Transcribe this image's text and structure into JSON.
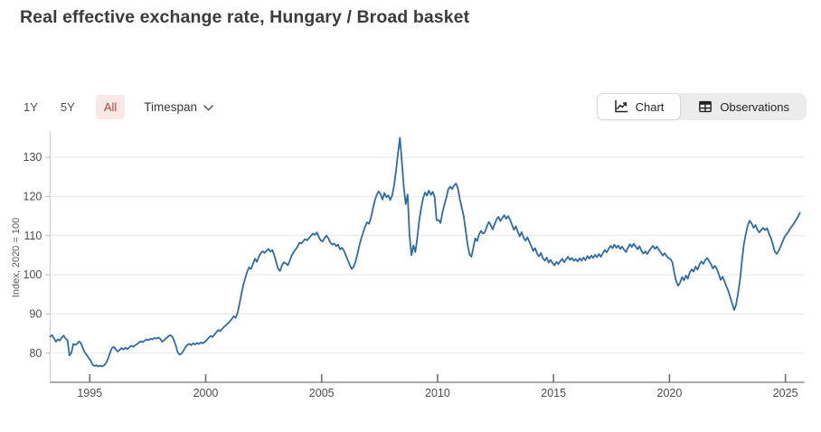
{
  "header": {
    "title": "Real effective exchange rate, Hungary / Broad basket"
  },
  "controls": {
    "range_buttons": [
      {
        "label": "1Y",
        "active": false
      },
      {
        "label": "5Y",
        "active": false
      },
      {
        "label": "All",
        "active": true
      }
    ],
    "timespan_label": "Timespan",
    "view_toggle": [
      {
        "label": "Chart",
        "icon": "line-chart-icon",
        "active": true
      },
      {
        "label": "Observations",
        "icon": "table-icon",
        "active": false
      }
    ]
  },
  "colors": {
    "line": "#2e6ca4",
    "grid": "#e7e7e7",
    "x_axis": "#8f8f8f",
    "y_axis": "#c9c9c9",
    "tick": "#6e6e6e",
    "tick_label": "#4c4c4c",
    "axis_title": "#5a5a5a",
    "active_pill_bg": "#f9e8e5",
    "active_pill_text": "#b5413d"
  },
  "chart_data": {
    "type": "line",
    "title": "Real effective exchange rate, Hungary / Broad basket",
    "series_name": "Hungary, real effective exchange rate, broad basket",
    "ylabel": "Index, 2020 = 100",
    "x_ticks": [
      1995,
      2000,
      2005,
      2010,
      2015,
      2020,
      2025
    ],
    "y_ticks": [
      80,
      90,
      100,
      110,
      120,
      130
    ],
    "xlim": [
      1993.29,
      2025.63
    ],
    "ylim": [
      75.5,
      137
    ],
    "grid": "horizontal-only",
    "legend": "none",
    "frequency": "monthly",
    "start_year": 1993,
    "start_month": 4,
    "values": [
      84.2,
      84.6,
      83.8,
      82.9,
      83.5,
      83.2,
      83.9,
      84.5,
      83.7,
      83.3,
      79.4,
      80.1,
      82.3,
      82.1,
      82.4,
      83.0,
      82.5,
      81.2,
      80.1,
      79.5,
      78.7,
      78.1,
      77.0,
      76.7,
      76.9,
      76.6,
      76.8,
      76.6,
      76.9,
      77.5,
      78.6,
      80.1,
      81.3,
      81.6,
      80.9,
      80.4,
      80.8,
      81.3,
      80.9,
      81.4,
      81.0,
      81.5,
      81.9,
      81.6,
      82.0,
      82.3,
      82.7,
      83.0,
      82.8,
      83.2,
      83.5,
      83.3,
      83.7,
      83.5,
      83.9,
      83.7,
      84.0,
      83.6,
      82.9,
      83.3,
      83.8,
      84.2,
      84.6,
      84.3,
      83.4,
      82.0,
      80.2,
      79.6,
      79.9,
      80.6,
      81.5,
      82.1,
      82.4,
      82.0,
      82.5,
      82.2,
      82.6,
      82.3,
      82.7,
      82.5,
      82.9,
      83.3,
      83.9,
      84.4,
      84.1,
      84.7,
      85.3,
      85.9,
      85.6,
      86.2,
      86.7,
      87.1,
      87.6,
      88.1,
      88.7,
      89.4,
      89.0,
      90.3,
      92.6,
      95.1,
      97.4,
      99.2,
      100.8,
      101.9,
      101.5,
      102.8,
      104.1,
      103.3,
      104.6,
      105.5,
      106.0,
      105.6,
      106.1,
      106.6,
      105.9,
      106.3,
      105.0,
      103.2,
      101.5,
      101.0,
      102.5,
      103.2,
      102.9,
      102.4,
      103.6,
      104.9,
      105.8,
      106.5,
      107.1,
      108.2,
      108.0,
      108.6,
      109.1,
      108.8,
      109.4,
      110.0,
      110.5,
      110.2,
      110.8,
      109.7,
      108.8,
      108.5,
      109.4,
      110.0,
      109.3,
      108.2,
      107.7,
      108.0,
      107.3,
      107.7,
      106.5,
      106.9,
      106.2,
      105.0,
      103.8,
      102.6,
      101.5,
      102.0,
      103.3,
      105.2,
      107.4,
      109.3,
      110.8,
      112.3,
      113.4,
      113.0,
      114.5,
      116.8,
      118.9,
      120.4,
      121.3,
      120.6,
      119.2,
      120.9,
      119.8,
      120.3,
      119.1,
      120.3,
      122.8,
      126.5,
      131.0,
      135.0,
      129.0,
      122.5,
      118.0,
      120.5,
      110.0,
      105.0,
      107.5,
      105.8,
      109.5,
      113.8,
      117.0,
      119.5,
      121.0,
      120.2,
      121.5,
      120.4,
      121.2,
      119.8,
      113.9,
      114.0,
      113.2,
      115.8,
      117.9,
      119.6,
      121.8,
      122.5,
      121.9,
      122.8,
      123.3,
      122.1,
      119.4,
      117.2,
      115.0,
      111.5,
      107.8,
      105.2,
      104.6,
      106.9,
      109.3,
      108.6,
      110.4,
      111.2,
      110.5,
      110.9,
      112.3,
      113.5,
      112.7,
      111.6,
      112.9,
      114.1,
      114.8,
      113.7,
      114.5,
      115.2,
      114.3,
      115.0,
      114.1,
      112.8,
      111.5,
      112.4,
      111.0,
      109.8,
      110.9,
      109.5,
      108.7,
      109.6,
      108.4,
      107.3,
      106.1,
      106.8,
      105.4,
      104.7,
      105.6,
      104.2,
      103.6,
      104.4,
      103.1,
      103.8,
      103.0,
      102.4,
      103.3,
      102.7,
      103.5,
      104.1,
      103.2,
      103.9,
      104.6,
      103.8,
      104.3,
      103.6,
      104.0,
      103.4,
      104.2,
      103.6,
      104.4,
      103.7,
      104.8,
      104.1,
      104.9,
      104.3,
      105.1,
      104.5,
      105.3,
      104.6,
      105.5,
      106.3,
      105.7,
      106.6,
      107.4,
      106.8,
      107.7,
      106.9,
      107.5,
      106.6,
      107.2,
      106.4,
      105.8,
      106.9,
      107.8,
      107.1,
      107.9,
      107.2,
      106.5,
      107.3,
      106.1,
      105.4,
      106.0,
      105.3,
      106.1,
      106.8,
      107.4,
      106.6,
      107.2,
      106.4,
      105.7,
      104.9,
      105.5,
      104.8,
      104.2,
      104.0,
      103.2,
      100.5,
      98.3,
      97.2,
      98.0,
      99.4,
      98.6,
      99.8,
      99.0,
      100.6,
      101.4,
      100.8,
      102.1,
      101.3,
      102.6,
      103.4,
      102.8,
      103.7,
      104.3,
      103.5,
      102.7,
      101.6,
      102.3,
      101.5,
      100.2,
      98.7,
      99.5,
      98.3,
      97.0,
      95.8,
      94.2,
      92.6,
      91.0,
      92.4,
      95.3,
      98.6,
      103.5,
      107.8,
      110.4,
      112.6,
      113.8,
      113.1,
      112.0,
      112.7,
      111.5,
      110.8,
      111.4,
      112.0,
      111.4,
      111.9,
      110.5,
      109.4,
      107.8,
      105.9,
      105.3,
      106.1,
      107.2,
      108.4,
      109.6,
      110.3,
      111.0,
      111.8,
      112.5,
      113.2,
      114.0,
      114.8,
      115.8
    ]
  }
}
